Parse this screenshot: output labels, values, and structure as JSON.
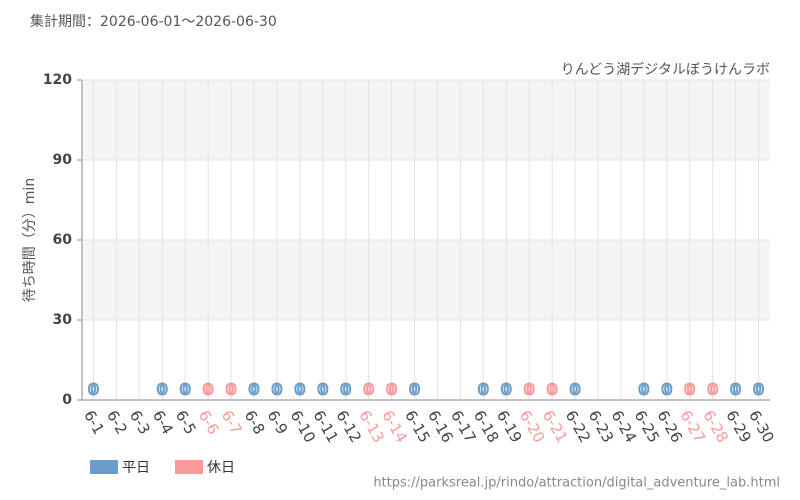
{
  "chart_data": {
    "type": "bar",
    "title": "集計期間：2026-06-01〜2026-06-30",
    "subtitle": "りんどう湖デジタルぼうけんラボ",
    "y_label": "待ち時間（分）min",
    "source": "https://parksreal.jp/rindo/attraction/digital_adventure_lab.html",
    "categories": [
      "6-1",
      "6-2",
      "6-3",
      "6-4",
      "6-5",
      "6-6",
      "6-7",
      "6-8",
      "6-9",
      "6-10",
      "6-11",
      "6-12",
      "6-13",
      "6-14",
      "6-15",
      "6-16",
      "6-17",
      "6-18",
      "6-19",
      "6-20",
      "6-21",
      "6-22",
      "6-23",
      "6-24",
      "6-25",
      "6-26",
      "6-27",
      "6-28",
      "6-29",
      "6-30"
    ],
    "series": [
      {
        "name": "平日",
        "color": "#6a9ec8",
        "values": [
          0,
          null,
          null,
          0,
          0,
          null,
          null,
          0,
          0,
          0,
          0,
          0,
          null,
          null,
          0,
          null,
          null,
          0,
          0,
          null,
          null,
          0,
          null,
          null,
          0,
          0,
          null,
          null,
          0,
          0
        ]
      },
      {
        "name": "休日",
        "color": "#f99a9a",
        "values": [
          null,
          null,
          null,
          null,
          null,
          0,
          0,
          null,
          null,
          null,
          null,
          null,
          0,
          0,
          null,
          null,
          null,
          null,
          null,
          0,
          0,
          null,
          null,
          null,
          null,
          null,
          0,
          0,
          null,
          null
        ]
      }
    ],
    "ylim": [
      0,
      120
    ],
    "yticks": [
      0,
      30,
      60,
      90,
      120
    ],
    "grid": true
  }
}
